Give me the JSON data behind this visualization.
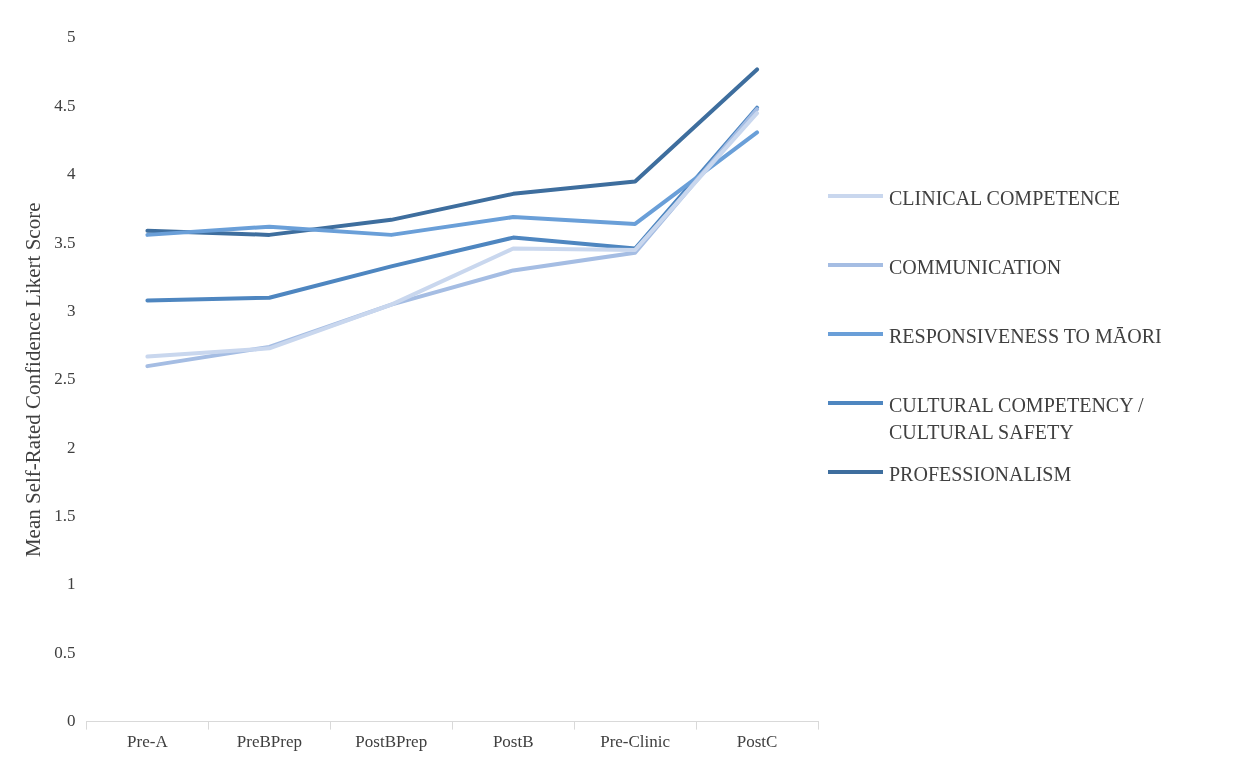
{
  "chart_data": {
    "type": "line",
    "ylabel": "Mean Self-Rated Confidence Likert Score",
    "categories": [
      "Pre-A",
      "PreBPrep",
      "PostBPrep",
      "PostB",
      "Pre-Clinic",
      "PostC"
    ],
    "series": [
      {
        "name": "CLINICAL COMPETENCE",
        "color": "#c9d7ee",
        "values": [
          2.67,
          2.73,
          3.05,
          3.46,
          3.45,
          4.45
        ]
      },
      {
        "name": "COMMUNICATION",
        "color": "#a5bde3",
        "values": [
          2.6,
          2.74,
          3.05,
          3.3,
          3.43,
          4.48
        ]
      },
      {
        "name": "RESPONSIVENESS TO MĀORI",
        "color": "#6a9fd8",
        "values": [
          3.56,
          3.62,
          3.56,
          3.69,
          3.64,
          4.31
        ]
      },
      {
        "name": "CULTURAL COMPETENCY / CULTURAL SAFETY",
        "color": "#4e86c0",
        "values": [
          3.08,
          3.1,
          3.33,
          3.54,
          3.46,
          4.49
        ]
      },
      {
        "name": "PROFESSIONALISM",
        "color": "#3e6e9e",
        "values": [
          3.59,
          3.56,
          3.67,
          3.86,
          3.95,
          4.77
        ]
      }
    ],
    "ylim": [
      0,
      5
    ],
    "yticks": [
      0,
      0.5,
      1,
      1.5,
      2,
      2.5,
      3,
      3.5,
      4,
      4.5,
      5
    ],
    "grid": false,
    "legend": "right",
    "marker": "none",
    "line_style": "solid"
  }
}
